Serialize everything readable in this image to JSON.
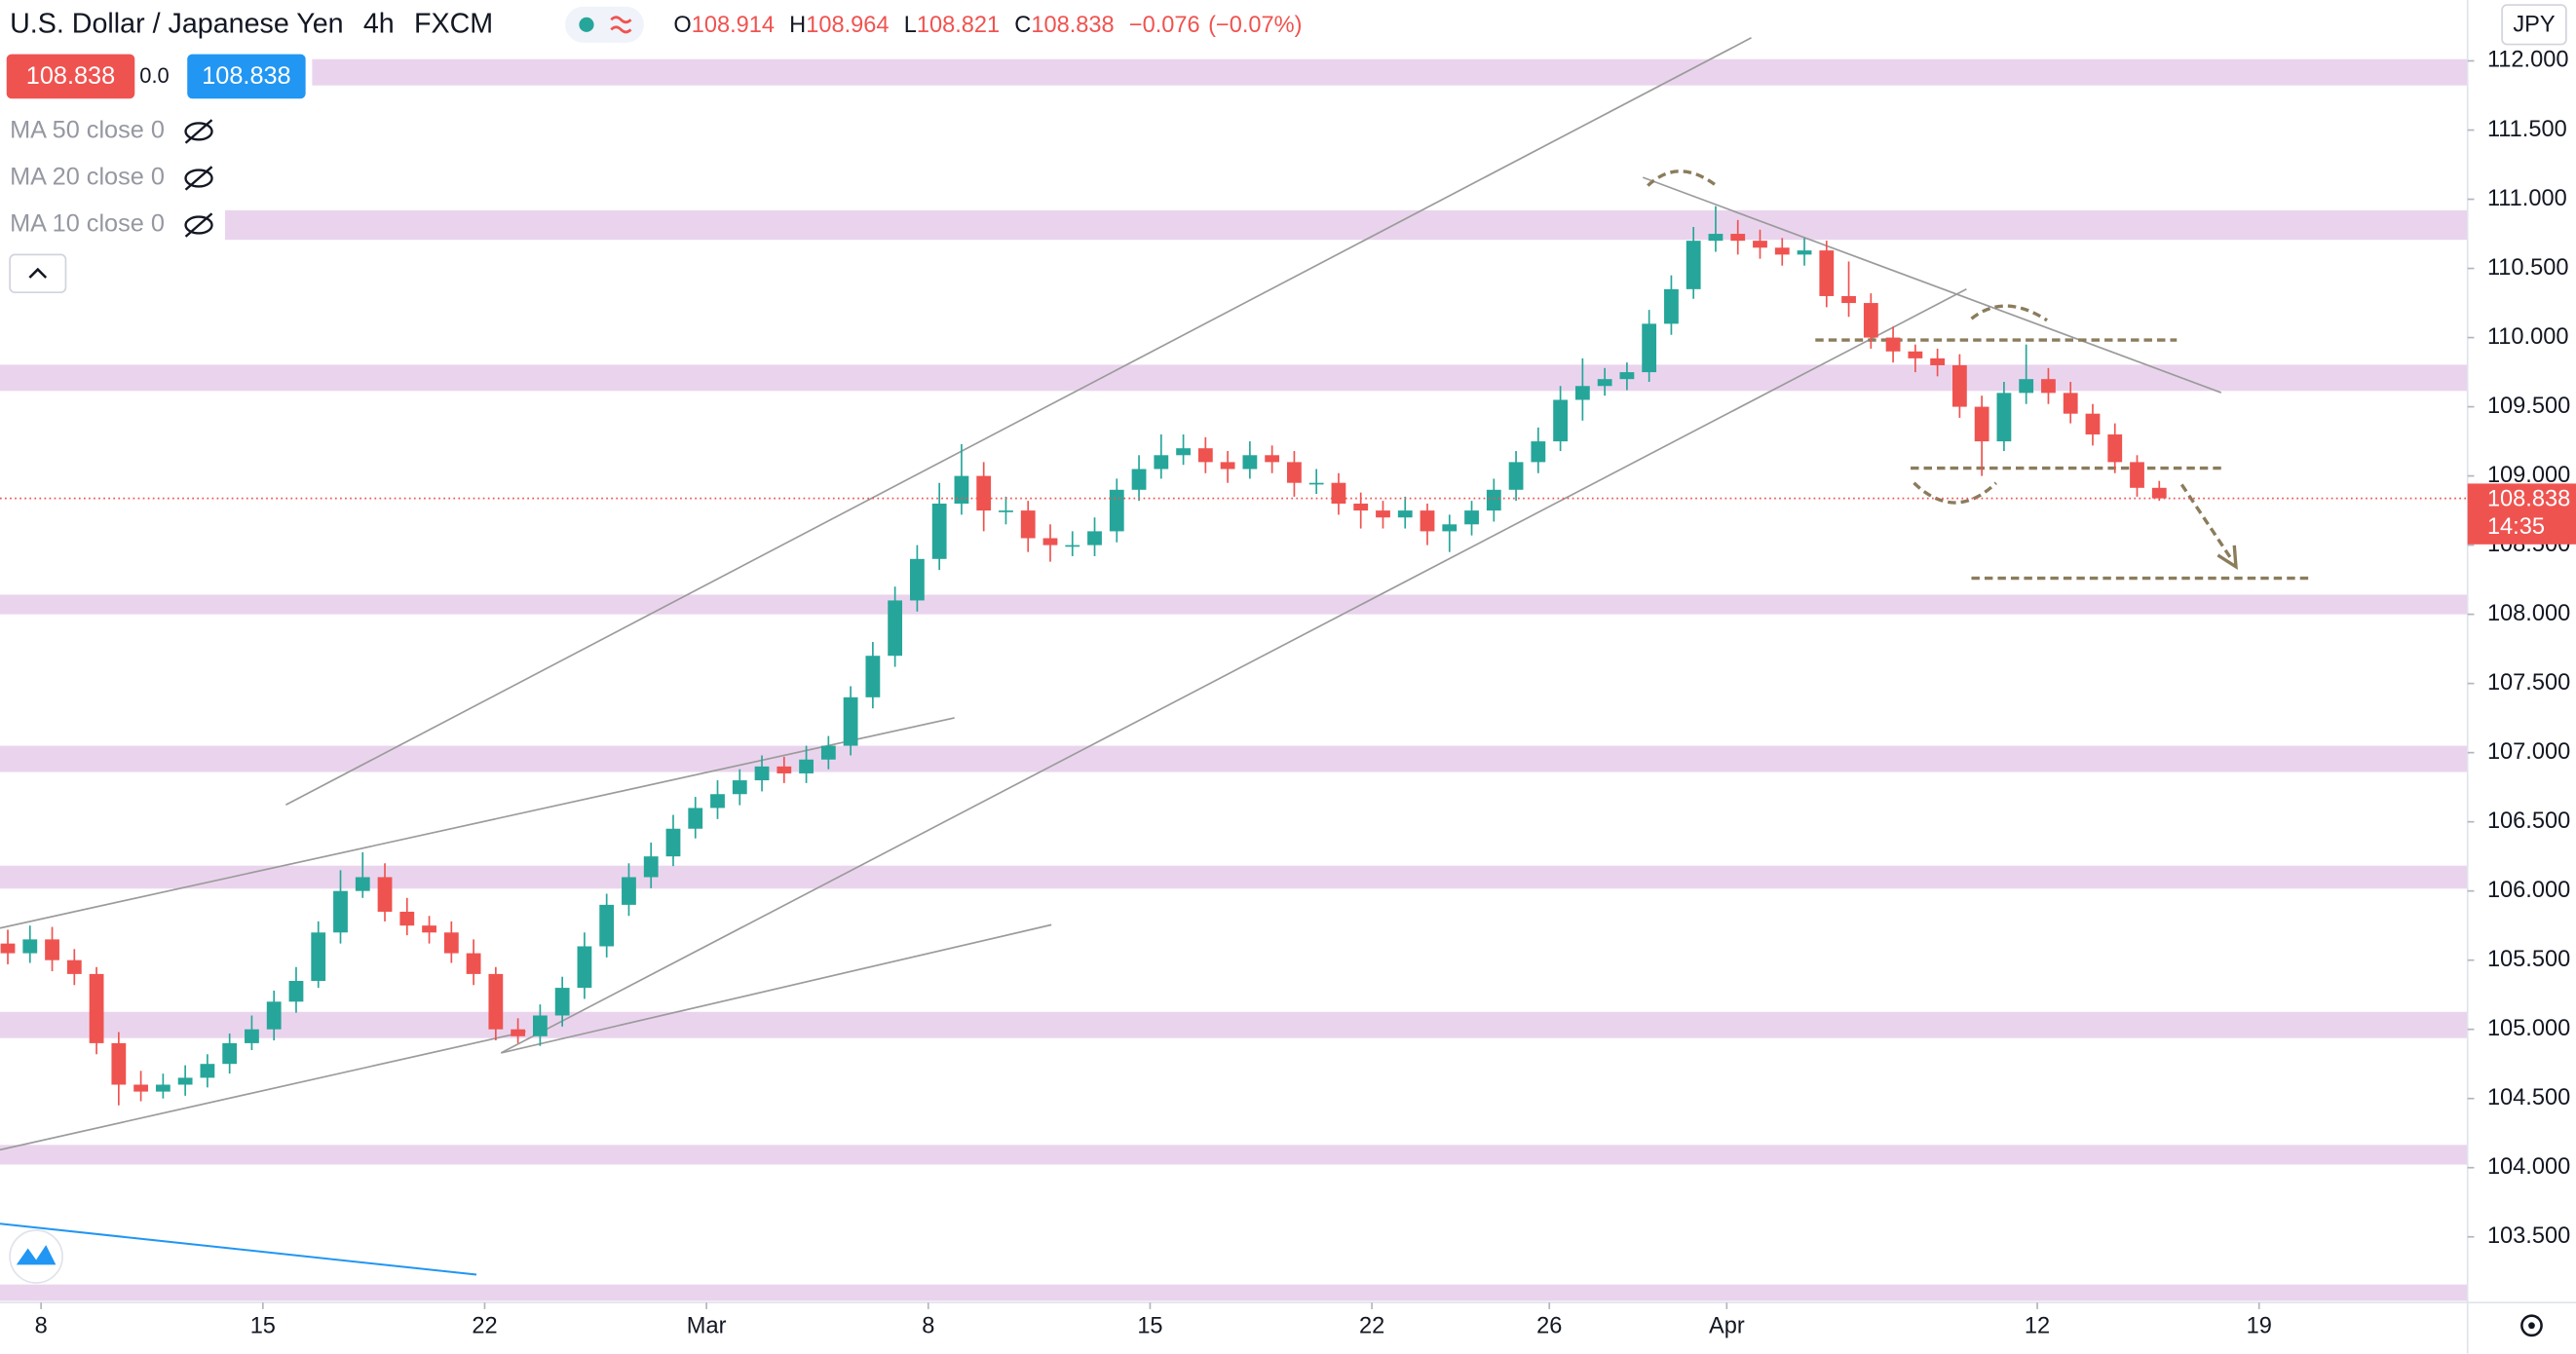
{
  "chart_data": {
    "type": "candlestick",
    "title": "U.S. Dollar / Japanese Yen",
    "interval": "4h",
    "source": "FXCM",
    "ohlc": [
      {
        "label": "O",
        "value": 108.914
      },
      {
        "label": "H",
        "value": 108.964
      },
      {
        "label": "L",
        "value": 108.821
      },
      {
        "label": "C",
        "value": 108.838
      }
    ],
    "change": {
      "value": -0.076,
      "label": "−0.076"
    },
    "change_pct": {
      "value": -0.07,
      "label": "(−0.07%)"
    },
    "sell": {
      "value": 108.838,
      "label": "108.838"
    },
    "spread": {
      "value": 0,
      "label": "0.0"
    },
    "buy": {
      "value": 108.838,
      "label": "108.838"
    },
    "indicators": [
      "MA 50 close 0",
      "MA 20 close 0",
      "MA 10 close 0"
    ],
    "currency": "JPY",
    "last_price": {
      "value": 108.838,
      "label": "108.838"
    },
    "countdown": "14:35",
    "up_color": "#26a69a",
    "down_color": "#ef5350",
    "xlim": [
      -0.926,
      54.7
    ],
    "ylim": [
      103.025,
      112.44
    ],
    "xticks": [
      {
        "value": 0,
        "label": "8"
      },
      {
        "value": 5,
        "label": "15"
      },
      {
        "value": 10,
        "label": "22"
      },
      {
        "value": 15,
        "label": "Mar"
      },
      {
        "value": 20,
        "label": "8"
      },
      {
        "value": 25,
        "label": "15"
      },
      {
        "value": 30,
        "label": "22"
      },
      {
        "value": 34,
        "label": "26"
      },
      {
        "value": 38,
        "label": "Apr"
      },
      {
        "value": 45,
        "label": "12"
      },
      {
        "value": 50,
        "label": "19"
      }
    ],
    "yticks": [
      {
        "value": 103.5,
        "label": "103.500"
      },
      {
        "value": 104,
        "label": "104.000"
      },
      {
        "value": 104.5,
        "label": "104.500"
      },
      {
        "value": 105,
        "label": "105.000"
      },
      {
        "value": 105.5,
        "label": "105.500"
      },
      {
        "value": 106,
        "label": "106.000"
      },
      {
        "value": 106.5,
        "label": "106.500"
      },
      {
        "value": 107,
        "label": "107.000"
      },
      {
        "value": 107.5,
        "label": "107.500"
      },
      {
        "value": 108,
        "label": "108.000"
      },
      {
        "value": 108.5,
        "label": "108.500"
      },
      {
        "value": 109,
        "label": "109.000"
      },
      {
        "value": 109.5,
        "label": "109.500"
      },
      {
        "value": 110,
        "label": "110.000"
      },
      {
        "value": 110.5,
        "label": "110.500"
      },
      {
        "value": 111,
        "label": "111.000"
      },
      {
        "value": 111.5,
        "label": "111.500"
      },
      {
        "value": 112,
        "label": "112.000"
      }
    ],
    "x": [
      -0.75,
      -0.25,
      0.25,
      0.75,
      1.25,
      1.75,
      2.25,
      2.75,
      3.25,
      3.75,
      4.25,
      4.75,
      5.25,
      5.75,
      6.25,
      6.75,
      7.25,
      7.75,
      8.25,
      8.75,
      9.25,
      9.75,
      10.25,
      10.75,
      11.25,
      11.75,
      12.25,
      12.75,
      13.25,
      13.75,
      14.25,
      14.75,
      15.25,
      15.75,
      16.25,
      16.75,
      17.25,
      17.75,
      18.25,
      18.75,
      19.25,
      19.75,
      20.25,
      20.75,
      21.25,
      21.75,
      22.25,
      22.75,
      23.25,
      23.75,
      24.25,
      24.75,
      25.25,
      25.75,
      26.25,
      26.75,
      27.25,
      27.75,
      28.25,
      28.75,
      29.25,
      29.75,
      30.25,
      30.75,
      31.25,
      31.75,
      32.25,
      32.75,
      33.25,
      33.75,
      34.25,
      34.75,
      35.25,
      35.75,
      36.25,
      36.75,
      37.25,
      37.75,
      38.25,
      38.75,
      39.25,
      39.75,
      40.25,
      40.75,
      41.25,
      41.75,
      42.25,
      42.75,
      43.25,
      43.75,
      44.25,
      44.75,
      45.25,
      45.75,
      46.25,
      46.75,
      47.25,
      47.75
    ],
    "open": [
      105.62,
      105.55,
      105.65,
      105.5,
      105.4,
      104.9,
      104.6,
      104.55,
      104.6,
      104.65,
      104.75,
      104.9,
      105.0,
      105.2,
      105.35,
      105.7,
      106.0,
      106.1,
      105.85,
      105.75,
      105.7,
      105.55,
      105.4,
      105.0,
      104.95,
      105.1,
      105.3,
      105.6,
      105.9,
      106.1,
      106.25,
      106.45,
      106.6,
      106.7,
      106.8,
      106.9,
      106.85,
      106.95,
      107.05,
      107.4,
      107.7,
      108.1,
      108.4,
      108.8,
      109.0,
      108.75,
      108.75,
      108.55,
      108.5,
      108.5,
      108.6,
      108.9,
      109.05,
      109.15,
      109.2,
      109.1,
      109.05,
      109.15,
      109.1,
      108.95,
      108.95,
      108.8,
      108.75,
      108.7,
      108.75,
      108.6,
      108.65,
      108.75,
      108.9,
      109.1,
      109.25,
      109.55,
      109.65,
      109.7,
      109.75,
      110.1,
      110.35,
      110.7,
      110.75,
      110.7,
      110.65,
      110.6,
      110.63,
      110.3,
      110.25,
      110.0,
      109.9,
      109.85,
      109.8,
      109.5,
      109.25,
      109.6,
      109.7,
      109.6,
      109.45,
      109.3,
      109.1,
      108.914
    ],
    "high": [
      105.72,
      105.75,
      105.74,
      105.58,
      105.45,
      104.98,
      104.7,
      104.68,
      104.74,
      104.82,
      104.97,
      105.1,
      105.28,
      105.45,
      105.78,
      106.15,
      106.28,
      106.2,
      105.95,
      105.82,
      105.78,
      105.65,
      105.45,
      105.08,
      105.18,
      105.38,
      105.7,
      105.98,
      106.2,
      106.35,
      106.55,
      106.68,
      106.8,
      106.88,
      106.98,
      106.97,
      107.05,
      107.12,
      107.48,
      107.8,
      108.2,
      108.5,
      108.95,
      109.23,
      109.1,
      108.85,
      108.82,
      108.65,
      108.6,
      108.7,
      108.98,
      109.15,
      109.3,
      109.3,
      109.28,
      109.18,
      109.25,
      109.22,
      109.18,
      109.05,
      109.02,
      108.88,
      108.82,
      108.85,
      108.8,
      108.72,
      108.82,
      108.98,
      109.18,
      109.35,
      109.65,
      109.85,
      109.78,
      109.82,
      110.2,
      110.45,
      110.8,
      110.95,
      110.85,
      110.78,
      110.72,
      110.72,
      110.7,
      110.55,
      110.32,
      110.08,
      109.95,
      109.92,
      109.88,
      109.58,
      109.68,
      109.95,
      109.78,
      109.68,
      109.52,
      109.38,
      109.15,
      108.964
    ],
    "low": [
      105.47,
      105.48,
      105.42,
      105.32,
      104.82,
      104.45,
      104.48,
      104.5,
      104.52,
      104.58,
      104.68,
      104.85,
      104.92,
      105.12,
      105.3,
      105.62,
      105.95,
      105.78,
      105.68,
      105.62,
      105.48,
      105.32,
      104.92,
      104.9,
      104.88,
      105.02,
      105.22,
      105.52,
      105.82,
      106.02,
      106.18,
      106.38,
      106.52,
      106.62,
      106.72,
      106.78,
      106.78,
      106.88,
      106.98,
      107.32,
      107.62,
      108.02,
      108.32,
      108.72,
      108.6,
      108.65,
      108.45,
      108.38,
      108.42,
      108.42,
      108.52,
      108.82,
      108.98,
      109.08,
      109.02,
      108.95,
      108.98,
      109.02,
      108.85,
      108.87,
      108.72,
      108.62,
      108.62,
      108.62,
      108.5,
      108.45,
      108.57,
      108.67,
      108.82,
      109.02,
      109.18,
      109.4,
      109.58,
      109.62,
      109.68,
      110.02,
      110.28,
      110.62,
      110.6,
      110.57,
      110.52,
      110.52,
      110.22,
      110.15,
      109.92,
      109.82,
      109.75,
      109.72,
      109.42,
      109.0,
      109.18,
      109.52,
      109.52,
      109.38,
      109.22,
      109.02,
      108.85,
      108.821
    ],
    "close": [
      105.55,
      105.65,
      105.5,
      105.4,
      104.9,
      104.6,
      104.55,
      104.6,
      104.65,
      104.75,
      104.9,
      105.0,
      105.2,
      105.35,
      105.7,
      106.0,
      106.1,
      105.85,
      105.75,
      105.7,
      105.55,
      105.4,
      105.0,
      104.95,
      105.1,
      105.3,
      105.6,
      105.9,
      106.1,
      106.25,
      106.45,
      106.6,
      106.7,
      106.8,
      106.9,
      106.85,
      106.95,
      107.05,
      107.4,
      107.7,
      108.1,
      108.4,
      108.8,
      109.0,
      108.75,
      108.75,
      108.55,
      108.5,
      108.5,
      108.6,
      108.9,
      109.05,
      109.15,
      109.2,
      109.1,
      109.05,
      109.15,
      109.1,
      108.95,
      108.95,
      108.8,
      108.75,
      108.7,
      108.75,
      108.6,
      108.65,
      108.75,
      108.9,
      109.1,
      109.25,
      109.55,
      109.65,
      109.7,
      109.75,
      110.1,
      110.35,
      110.7,
      110.75,
      110.7,
      110.65,
      110.6,
      110.63,
      110.3,
      110.25,
      110.0,
      109.9,
      109.85,
      109.8,
      109.5,
      109.25,
      109.6,
      109.7,
      109.6,
      109.45,
      109.3,
      109.1,
      108.914,
      108.838
    ]
  }
}
